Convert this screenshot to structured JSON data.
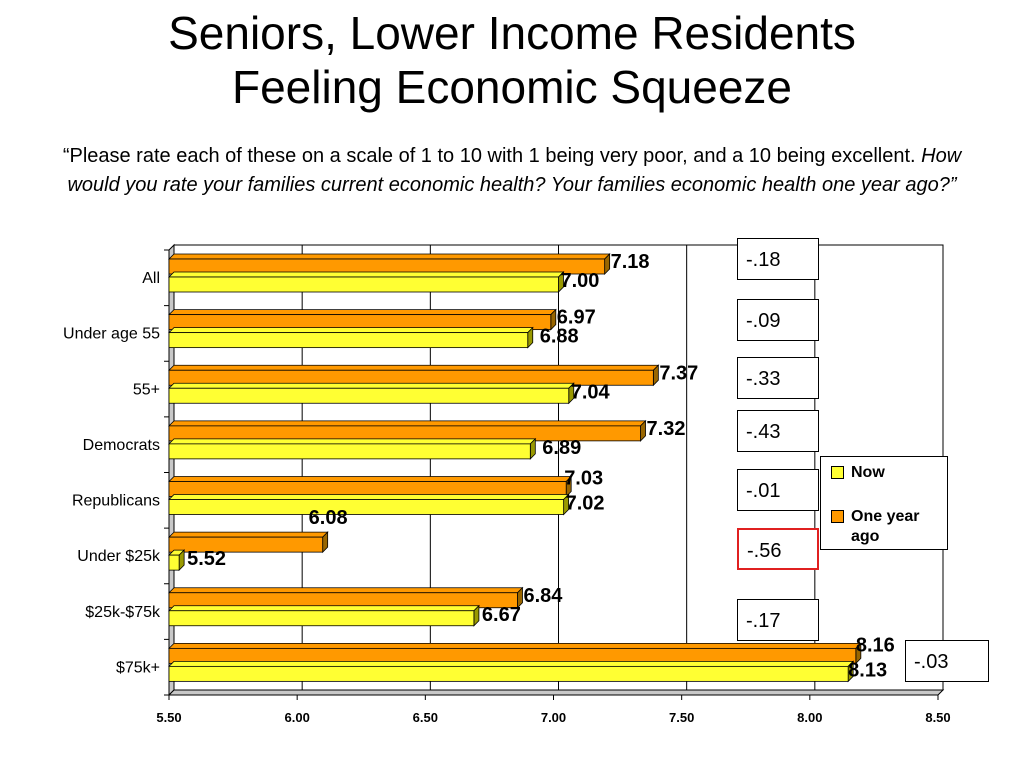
{
  "title": {
    "line1": "Seniors, Lower Income Residents",
    "line2": "Feeling Economic Squeeze"
  },
  "subtitle": {
    "plain": "“Please rate each of these on a scale of 1 to 10 with 1 being very poor, and a 10 being excellent.",
    "italic": "How would you rate your families current economic health? Your families economic health one year ago?”"
  },
  "chart_data": {
    "type": "bar",
    "orientation": "horizontal",
    "categories": [
      "All",
      "Under age 55",
      "55+",
      "Democrats",
      "Republicans",
      "Under $25k",
      "$25k-$75k",
      "$75k+"
    ],
    "series": [
      {
        "name": "One year ago",
        "values": [
          7.18,
          6.97,
          7.37,
          7.32,
          7.03,
          6.08,
          6.84,
          8.16
        ]
      },
      {
        "name": "Now",
        "values": [
          7.0,
          6.88,
          7.04,
          6.89,
          7.02,
          5.52,
          6.67,
          8.13
        ]
      }
    ],
    "value_labels": {
      "One year ago": [
        "7.18",
        "6.97",
        "7.37",
        "7.32",
        "7.03",
        "6.08",
        "6.84",
        "8.16"
      ],
      "Now": [
        "7.00",
        "6.88",
        "7.04",
        "6.89",
        "7.02",
        "5.52",
        "6.67",
        "8.13"
      ]
    },
    "xlim": [
      5.5,
      8.5
    ],
    "xticks": [
      5.5,
      6.0,
      6.5,
      7.0,
      7.5,
      8.0,
      8.5
    ],
    "xtick_labels": [
      "5.50",
      "6.00",
      "6.50",
      "7.00",
      "7.50",
      "8.00",
      "8.50"
    ],
    "gridlines": true,
    "legend_position": "right",
    "differences": [
      "-.18",
      "-.09",
      "-.33",
      "-.43",
      "-.01",
      "-.56",
      "-.17",
      "-.03"
    ],
    "highlighted_difference": "-.56"
  },
  "legend": {
    "items": [
      {
        "label": "Now",
        "color": "#ffff33"
      },
      {
        "label": "One year ago",
        "color": "#ff9900"
      }
    ]
  },
  "colors": {
    "now": "#ffff33",
    "now_side": "#999900",
    "year_ago": "#ff9900",
    "year_ago_side": "#996600",
    "highlight": "#e02020"
  }
}
